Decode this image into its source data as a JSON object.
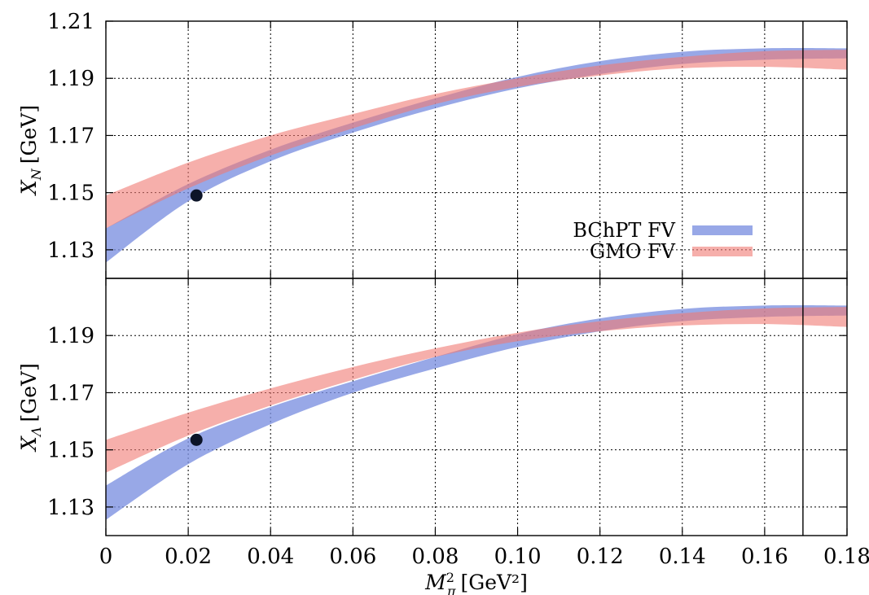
{
  "chart_data": {
    "type": "area",
    "x_label": "[GeV²]",
    "x_label_symbol": "M",
    "x_label_sub": "π",
    "x_label_sup": "2",
    "xlim": [
      0,
      0.18
    ],
    "x_ticks": [
      "0",
      "0.02",
      "0.04",
      "0.06",
      "0.08",
      "0.10",
      "0.12",
      "0.14",
      "0.16",
      "0.18"
    ],
    "x_tick_values": [
      0,
      0.02,
      0.04,
      0.06,
      0.08,
      0.1,
      0.12,
      0.14,
      0.16,
      0.18
    ],
    "vertical_line_x": 0.1693,
    "band_x": [
      0,
      0.02,
      0.04,
      0.06,
      0.08,
      0.1,
      0.12,
      0.14,
      0.16,
      0.18
    ],
    "legend": [
      {
        "name": "BChPT FV",
        "color": "#7b8fe0"
      },
      {
        "name": "GMO FV",
        "color": "#f07a73"
      }
    ],
    "panels": [
      {
        "y_label_symbol": "X",
        "y_label_sub": "N",
        "y_label": "[GeV]",
        "ylim": [
          1.12,
          1.21
        ],
        "y_ticks": [
          "1.21",
          "1.19",
          "1.17",
          "1.15",
          "1.13"
        ],
        "y_tick_values": [
          1.21,
          1.19,
          1.17,
          1.15,
          1.13
        ],
        "series": [
          {
            "name": "BChPT FV",
            "color": "#7b8fe0",
            "lower": [
              1.1255,
              1.147,
              1.161,
              1.171,
              1.1795,
              1.1865,
              1.1915,
              1.195,
              1.1965,
              1.197
            ],
            "upper": [
              1.1375,
              1.153,
              1.165,
              1.1745,
              1.183,
              1.1905,
              1.196,
              1.1993,
              1.2005,
              1.2005
            ]
          },
          {
            "name": "GMO FV",
            "color": "#f07a73",
            "lower": [
              1.1375,
              1.1515,
              1.163,
              1.1725,
              1.181,
              1.187,
              1.191,
              1.1935,
              1.194,
              1.193
            ],
            "upper": [
              1.149,
              1.1605,
              1.17,
              1.1775,
              1.1845,
              1.19,
              1.1945,
              1.1975,
              1.1995,
              1.2
            ]
          }
        ],
        "point": {
          "x": 0.022,
          "y": 1.149
        }
      },
      {
        "y_label_symbol": "X",
        "y_label_sub": "Λ",
        "y_label": "[GeV]",
        "ylim": [
          1.12,
          1.21
        ],
        "y_ticks": [
          "1.19",
          "1.17",
          "1.15",
          "1.13"
        ],
        "y_tick_values": [
          1.19,
          1.17,
          1.15,
          1.13
        ],
        "series": [
          {
            "name": "BChPT FV",
            "color": "#7b8fe0",
            "lower": [
              1.1255,
              1.145,
              1.159,
              1.17,
              1.1785,
              1.186,
              1.1915,
              1.195,
              1.1965,
              1.197
            ],
            "upper": [
              1.1375,
              1.154,
              1.165,
              1.174,
              1.1825,
              1.1905,
              1.196,
              1.1993,
              1.2005,
              1.2005
            ]
          },
          {
            "name": "GMO FV",
            "color": "#f07a73",
            "lower": [
              1.142,
              1.155,
              1.1655,
              1.1745,
              1.1825,
              1.188,
              1.1915,
              1.1935,
              1.194,
              1.193
            ],
            "upper": [
              1.1535,
              1.163,
              1.1715,
              1.179,
              1.1855,
              1.191,
              1.195,
              1.1978,
              1.1995,
              1.2
            ]
          }
        ],
        "point": {
          "x": 0.022,
          "y": 1.1535
        }
      }
    ]
  }
}
